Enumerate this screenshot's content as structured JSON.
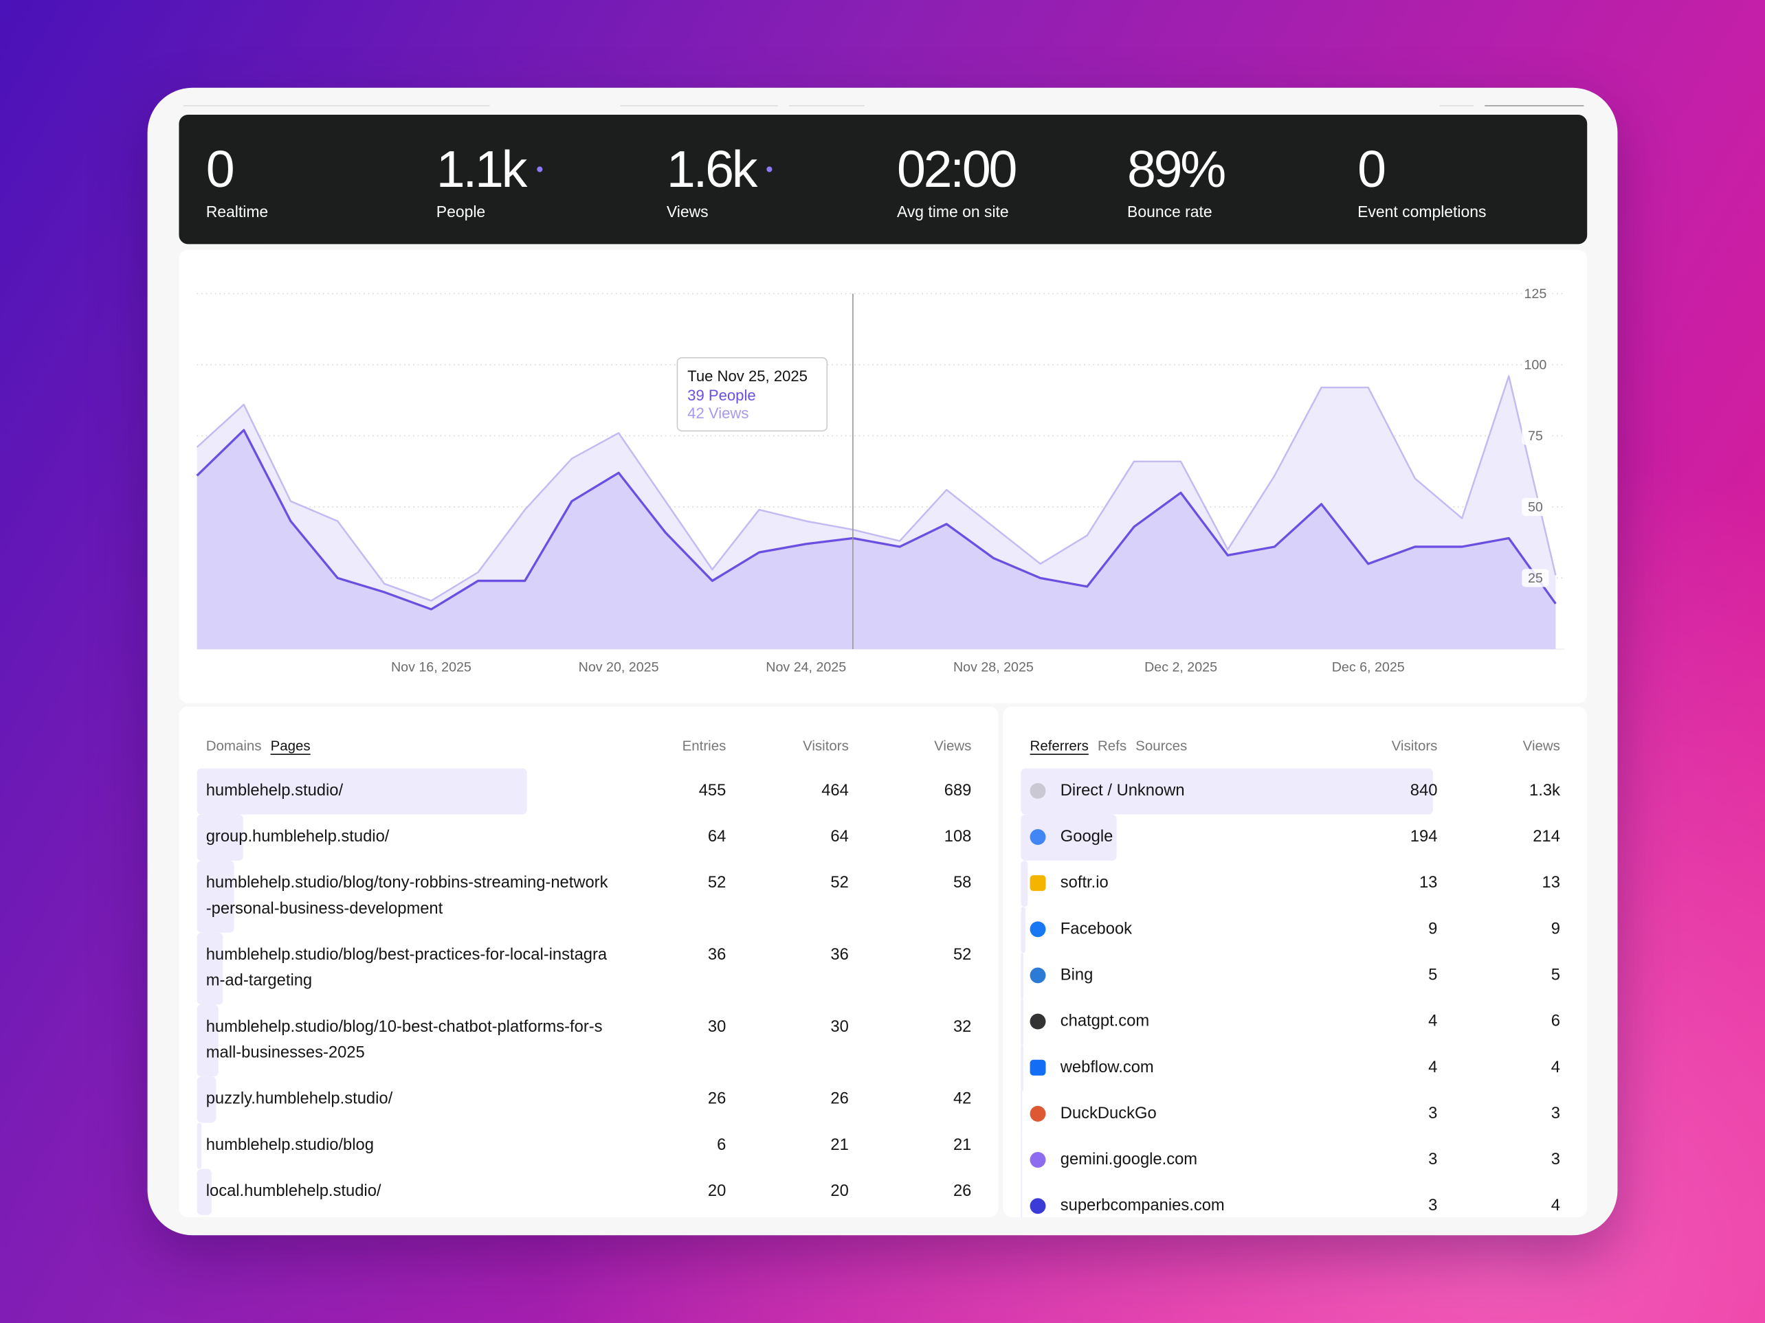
{
  "stats": [
    {
      "value": "0",
      "label": "Realtime"
    },
    {
      "value": "1.1k",
      "label": "People"
    },
    {
      "value": "1.6k",
      "label": "Views"
    },
    {
      "value": "02:00",
      "label": "Avg time on site"
    },
    {
      "value": "89%",
      "label": "Bounce rate"
    },
    {
      "value": "0",
      "label": "Event completions"
    }
  ],
  "chart_data": {
    "type": "area",
    "x": [
      "Nov 11, 2025",
      "Nov 12, 2025",
      "Nov 13, 2025",
      "Nov 14, 2025",
      "Nov 15, 2025",
      "Nov 16, 2025",
      "Nov 17, 2025",
      "Nov 18, 2025",
      "Nov 19, 2025",
      "Nov 20, 2025",
      "Nov 21, 2025",
      "Nov 22, 2025",
      "Nov 23, 2025",
      "Nov 24, 2025",
      "Nov 25, 2025",
      "Nov 26, 2025",
      "Nov 27, 2025",
      "Nov 28, 2025",
      "Nov 29, 2025",
      "Nov 30, 2025",
      "Dec 1, 2025",
      "Dec 2, 2025",
      "Dec 3, 2025",
      "Dec 4, 2025",
      "Dec 5, 2025",
      "Dec 6, 2025",
      "Dec 7, 2025",
      "Dec 8, 2025",
      "Dec 9, 2025",
      "Dec 10, 2025"
    ],
    "series": [
      {
        "name": "Views",
        "color": "#c4baf3",
        "fill": "#eeebfc",
        "values": [
          71,
          86,
          52,
          45,
          23,
          17,
          27,
          49,
          67,
          76,
          52,
          28,
          49,
          45,
          42,
          38,
          56,
          43,
          30,
          40,
          66,
          66,
          35,
          61,
          92,
          92,
          60,
          46,
          96,
          26
        ]
      },
      {
        "name": "People",
        "color": "#6b4fe0",
        "fill": "#d8d1fa",
        "values": [
          61,
          77,
          45,
          25,
          20,
          14,
          24,
          24,
          52,
          62,
          41,
          24,
          34,
          37,
          39,
          36,
          44,
          32,
          25,
          22,
          43,
          55,
          33,
          36,
          51,
          30,
          36,
          36,
          39,
          16
        ]
      }
    ],
    "ylim": [
      0,
      125
    ],
    "yticks": [
      25,
      50,
      75,
      100,
      125
    ],
    "grid": true,
    "xticks": [
      "Nov 16, 2025",
      "Nov 20, 2025",
      "Nov 24, 2025",
      "Nov 28, 2025",
      "Dec 2, 2025",
      "Dec 6, 2025"
    ],
    "tooltip": {
      "title": "Tue Nov 25, 2025",
      "lines": [
        "39 People",
        "42 Views"
      ]
    }
  },
  "pages_table": {
    "tabs": [
      "Domains",
      "Pages"
    ],
    "columns": [
      "Entries",
      "Visitors",
      "Views"
    ],
    "rows": [
      {
        "page": "humblehelp.studio/",
        "entries": 455,
        "visitors": 464,
        "views": 689
      },
      {
        "page": "group.humblehelp.studio/",
        "entries": 64,
        "visitors": 64,
        "views": 108
      },
      {
        "page": "humblehelp.studio/blog/tony-robbins-streaming-network-personal-business-development",
        "entries": 52,
        "visitors": 52,
        "views": 58
      },
      {
        "page": "humblehelp.studio/blog/best-practices-for-local-instagram-ad-targeting",
        "entries": 36,
        "visitors": 36,
        "views": 52
      },
      {
        "page": "humblehelp.studio/blog/10-best-chatbot-platforms-for-small-businesses-2025",
        "entries": 30,
        "visitors": 30,
        "views": 32
      },
      {
        "page": "puzzly.humblehelp.studio/",
        "entries": 26,
        "visitors": 26,
        "views": 42
      },
      {
        "page": "humblehelp.studio/blog",
        "entries": 6,
        "visitors": 21,
        "views": 21
      },
      {
        "page": "local.humblehelp.studio/",
        "entries": 20,
        "visitors": 20,
        "views": 26
      }
    ]
  },
  "referrers_table": {
    "tabs": [
      "Referrers",
      "Refs",
      "Sources"
    ],
    "columns": [
      "Visitors",
      "Views"
    ],
    "rows": [
      {
        "name": "Direct / Unknown",
        "visitors": 840,
        "views": "1.3k"
      },
      {
        "name": "Google",
        "visitors": 194,
        "views": 214
      },
      {
        "name": "softr.io",
        "visitors": 13,
        "views": 13
      },
      {
        "name": "Facebook",
        "visitors": 9,
        "views": 9
      },
      {
        "name": "Bing",
        "visitors": 5,
        "views": 5
      },
      {
        "name": "chatgpt.com",
        "visitors": 4,
        "views": 6
      },
      {
        "name": "webflow.com",
        "visitors": 4,
        "views": 4
      },
      {
        "name": "DuckDuckGo",
        "visitors": 3,
        "views": 3
      },
      {
        "name": "gemini.google.com",
        "visitors": 3,
        "views": 3
      },
      {
        "name": "superbcompanies.com",
        "visitors": 3,
        "views": 4
      }
    ]
  }
}
